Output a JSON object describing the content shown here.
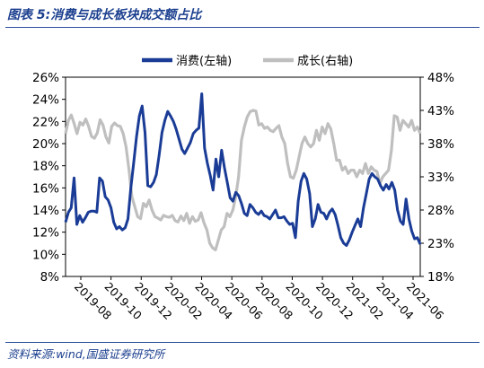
{
  "figure": {
    "title": "图表 5:消费与成长板块成交额占比",
    "source": "资料来源:wind,国盛证券研究所"
  },
  "chart_data": {
    "type": "line",
    "title": "图表 5:消费与成长板块成交额占比",
    "x_tick_labels": [
      "2019-08",
      "2019-10",
      "2019-12",
      "2020-02",
      "2020-04",
      "2020-06",
      "2020-08",
      "2020-10",
      "2020-12",
      "2021-02",
      "2021-04",
      "2021-06"
    ],
    "left_axis": {
      "ylim": [
        8,
        26
      ],
      "ticks": [
        "8%",
        "10%",
        "12%",
        "14%",
        "16%",
        "18%",
        "20%",
        "22%",
        "24%",
        "26%"
      ]
    },
    "right_axis": {
      "ylim": [
        18,
        48
      ],
      "ticks": [
        "18%",
        "23%",
        "28%",
        "33%",
        "38%",
        "43%",
        "48%"
      ]
    },
    "legend": {
      "placement": "top-center"
    },
    "series": [
      {
        "name": "消费(左轴)",
        "axis": "left",
        "color": "#1a3c96",
        "values": [
          12.9,
          13.8,
          14.2,
          16.9,
          12.7,
          13.5,
          12.9,
          13.3,
          13.8,
          13.9,
          13.9,
          13.8,
          16.9,
          16.6,
          15.2,
          14.9,
          14.2,
          12.9,
          12.3,
          12.5,
          12.2,
          12.4,
          13.2,
          16.0,
          18.2,
          20.6,
          22.5,
          23.4,
          21.0,
          16.2,
          16.1,
          16.5,
          17.2,
          19.0,
          21.0,
          22.1,
          22.9,
          22.5,
          22.0,
          21.3,
          20.4,
          19.5,
          19.1,
          19.6,
          20.1,
          20.9,
          21.2,
          21.4,
          24.5,
          19.6,
          18.2,
          17.1,
          15.8,
          18.6,
          17.0,
          19.4,
          17.8,
          16.5,
          15.1,
          14.8,
          15.6,
          15.3,
          14.6,
          13.7,
          13.5,
          14.5,
          14.2,
          13.8,
          13.6,
          13.9,
          13.5,
          13.4,
          13.2,
          13.6,
          14.0,
          13.3,
          13.3,
          13.4,
          13.0,
          12.7,
          12.8,
          11.5,
          14.8,
          16.6,
          17.3,
          16.8,
          15.5,
          12.5,
          13.2,
          14.5,
          13.8,
          13.7,
          13.2,
          13.8,
          14.1,
          13.6,
          12.6,
          11.5,
          11.0,
          10.8,
          11.3,
          12.0,
          12.6,
          13.2,
          12.5,
          14.2,
          15.5,
          16.8,
          17.3,
          17.0,
          16.8,
          16.2,
          15.8,
          16.3,
          15.9,
          16.5,
          15.8,
          14.0,
          13.0,
          12.7,
          15.0,
          13.2,
          12.1,
          11.4,
          11.5,
          10.9
        ]
      },
      {
        "name": "成长(右轴)",
        "axis": "right",
        "color": "#bfbfbf",
        "values": [
          39.5,
          41.5,
          42.3,
          41.0,
          39.5,
          41.2,
          40.8,
          41.7,
          40.6,
          39.1,
          38.8,
          39.6,
          41.6,
          40.8,
          39.0,
          38.1,
          40.6,
          41.1,
          40.7,
          40.6,
          39.5,
          37.5,
          34.0,
          30.0,
          28.5,
          27.0,
          26.7,
          29.0,
          28.5,
          29.5,
          28.0,
          27.0,
          26.8,
          26.5,
          27.2,
          27.0,
          26.9,
          27.2,
          26.4,
          26.2,
          27.1,
          26.4,
          27.5,
          26.0,
          27.0,
          26.3,
          26.5,
          27.6,
          26.1,
          25.0,
          23.0,
          22.3,
          22.0,
          23.5,
          25.0,
          25.5,
          27.5,
          27.0,
          28.0,
          30.0,
          33.0,
          38.5,
          40.5,
          42.0,
          42.8,
          43.0,
          42.9,
          40.8,
          41.0,
          40.3,
          40.5,
          40.0,
          39.8,
          40.3,
          40.7,
          39.0,
          38.0,
          35.0,
          33.0,
          32.8,
          34.0,
          36.0,
          38.0,
          39.0,
          38.0,
          37.5,
          38.0,
          40.0,
          38.5,
          40.5,
          39.5,
          41.0,
          40.2,
          38.0,
          35.5,
          35.5,
          34.0,
          34.5,
          33.5,
          34.0,
          34.0,
          33.0,
          34.0,
          33.5,
          35.0,
          33.5,
          34.5,
          34.0,
          33.8,
          32.0,
          33.0,
          33.5,
          34.0,
          37.0,
          42.2,
          42.0,
          40.0,
          41.5,
          41.0,
          40.5,
          41.5,
          40.0,
          40.5,
          39.5
        ]
      }
    ]
  }
}
